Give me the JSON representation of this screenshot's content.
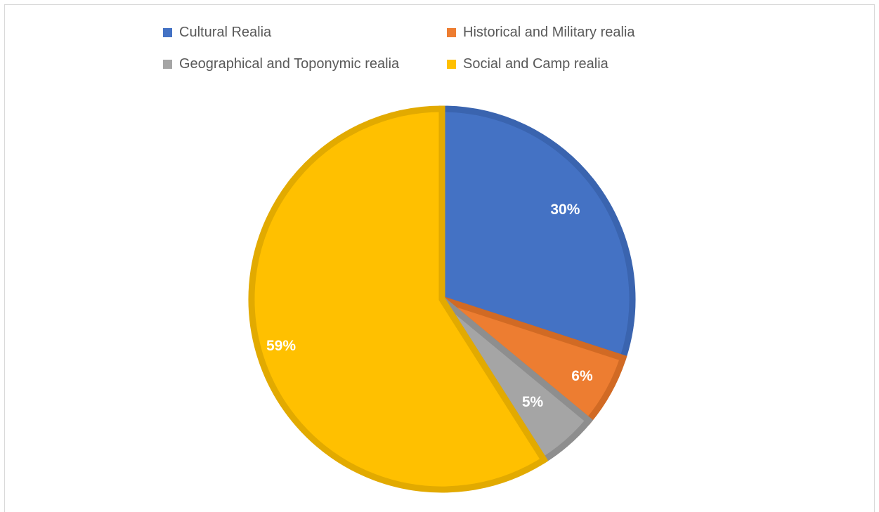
{
  "chart_data": {
    "type": "pie",
    "categories": [
      "Cultural Realia",
      "Historical and Military realia",
      "Geographical and Toponymic realia",
      "Social and Camp realia"
    ],
    "values": [
      30,
      6,
      5,
      59
    ],
    "data_labels": [
      "30%",
      "6%",
      "5%",
      "59%"
    ],
    "colors": [
      "#4472C4",
      "#ED7D31",
      "#A5A5A5",
      "#FFC000"
    ],
    "border_colors": [
      "#3A64AF",
      "#D16A24",
      "#8E8E8E",
      "#E2AA00"
    ],
    "legend_placement": "top",
    "start_angle_deg": 0,
    "direction": "clockwise"
  }
}
